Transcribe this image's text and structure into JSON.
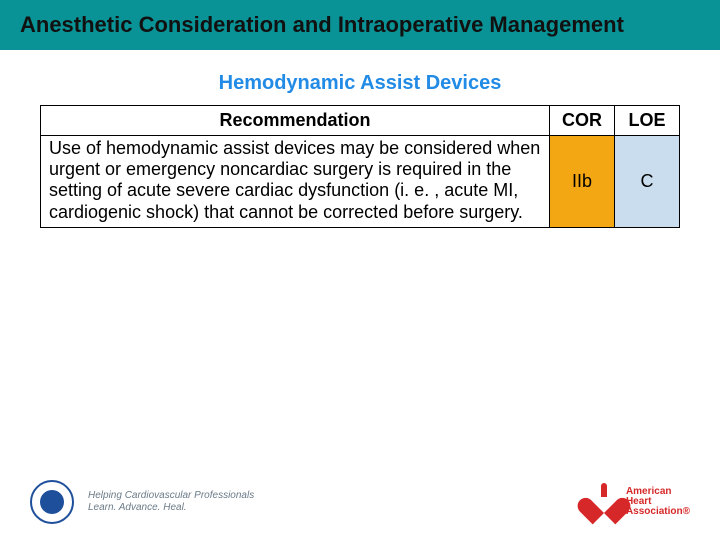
{
  "title": "Anesthetic Consideration and Intraoperative Management",
  "subtitle": "Hemodynamic Assist Devices",
  "table": {
    "headers": {
      "recommendation": "Recommendation",
      "cor": "COR",
      "loe": "LOE"
    },
    "row": {
      "recommendation": "Use of hemodynamic assist devices may be considered when urgent or emergency noncardiac surgery is required in the setting of acute severe cardiac dysfunction (i. e. , acute MI, cardiogenic shock) that cannot be corrected before surgery.",
      "cor": "IIb",
      "cor_bg": "#f3a712",
      "loe": "C",
      "loe_bg": "#c9ddee"
    }
  },
  "footer": {
    "acc_tag_line1": "Helping Cardiovascular Professionals",
    "acc_tag_line2": "Learn. Advance. Heal.",
    "aha_line1": "American",
    "aha_line2": "Heart",
    "aha_line3": "Association®"
  },
  "colors": {
    "title_bar_bg": "#0a9396",
    "subtitle_color": "#228be6"
  }
}
